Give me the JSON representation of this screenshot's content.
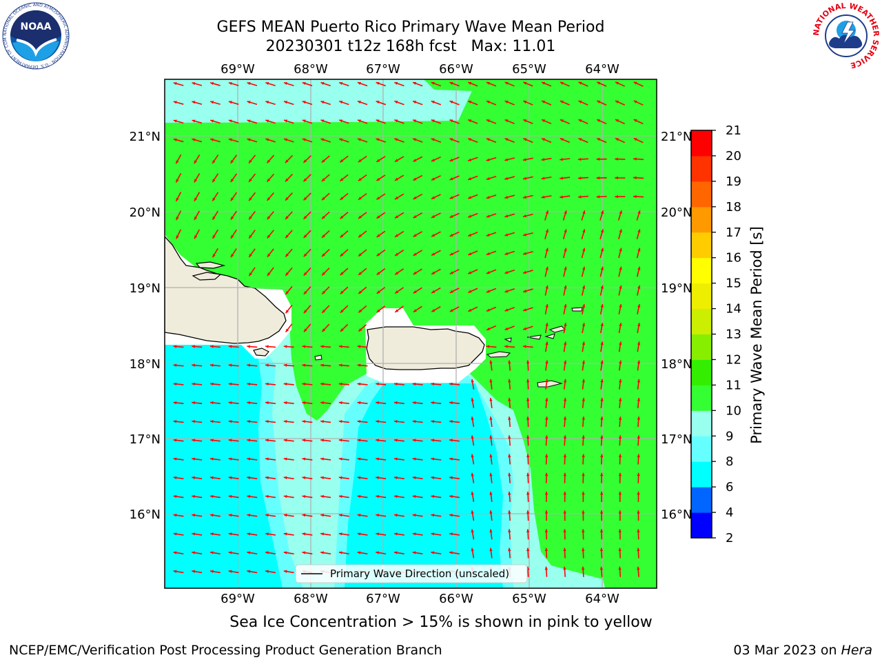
{
  "title_line1": "GEFS MEAN Puerto Rico Primary Wave Mean Period",
  "title_line2": "20230301 t12z 168h fcst   Max: 11.01",
  "lon_labels": [
    "69°W",
    "68°W",
    "67°W",
    "66°W",
    "65°W",
    "64°W"
  ],
  "lat_labels": [
    "21°N",
    "20°N",
    "19°N",
    "18°N",
    "17°N",
    "16°N"
  ],
  "legend_label": "Primary Wave Direction (unscaled)",
  "colorbar": {
    "label": "Primary Wave Mean Period [s]",
    "ticks": [
      "2",
      "4",
      "6",
      "8",
      "9",
      "10",
      "11",
      "12",
      "13",
      "14",
      "15",
      "16",
      "17",
      "18",
      "19",
      "20",
      "21"
    ],
    "colors": [
      "#0000ff",
      "#0066ff",
      "#00ffff",
      "#66ffff",
      "#99ffee",
      "#33ff33",
      "#33ee00",
      "#88ee00",
      "#ccee00",
      "#eeee00",
      "#ffff00",
      "#ffcc00",
      "#ff9900",
      "#ff6600",
      "#ff3300",
      "#ff0000"
    ]
  },
  "sea_ice_note": "Sea Ice Concentration > 15% is shown in pink to yellow",
  "footer_left": "NCEP/EMC/Verification Post Processing Product Generation Branch",
  "footer_date": "03 Mar 2023 on ",
  "footer_host": "Hera",
  "noaa_logo_text": "NOAA",
  "noaa_logo_ring": "NATIONAL OCEANIC AND ATMOSPHERIC ADMINISTRATION · U.S. DEPARTMENT OF COMMERCE",
  "nws_logo_ring": "NATIONAL WEATHER SERVICE",
  "arrow_color": "#ff0000",
  "land_color": "#efecdc"
}
